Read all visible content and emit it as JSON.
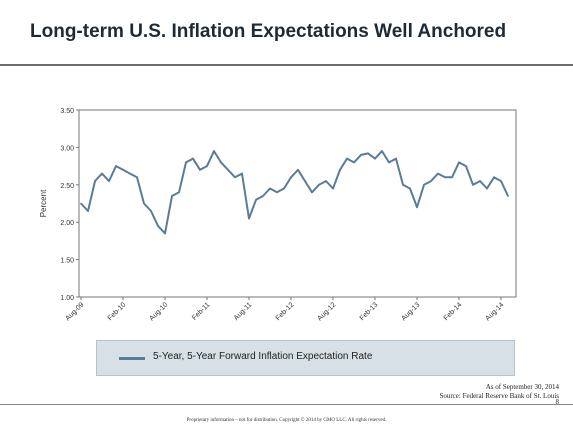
{
  "slide": {
    "title": "Long-term U.S. Inflation Expectations Well Anchored",
    "as_of": "As of September 30, 2014",
    "source": "Source: Federal Reserve Bank of St. Louis",
    "page_number": "8",
    "footer": "Proprietary information – not for distribution. Copyright © 2014 by GMO LLC. All rights reserved."
  },
  "colors": {
    "series": "#5a7d95",
    "legend_bg": "#d6e0e6"
  },
  "chart_data": {
    "type": "line",
    "title": "",
    "xlabel": "",
    "ylabel": "Percent",
    "ylim": [
      1.0,
      3.5
    ],
    "yticks": [
      "1.00",
      "1.50",
      "2.00",
      "2.50",
      "3.00",
      "3.50"
    ],
    "xticks": [
      "Aug-09",
      "Feb-10",
      "Aug-10",
      "Feb-11",
      "Aug-11",
      "Feb-12",
      "Aug-12",
      "Feb-13",
      "Aug-13",
      "Feb-14",
      "Aug-14"
    ],
    "grid": false,
    "legend_position": "bottom",
    "series": [
      {
        "name": "5-Year, 5-Year Forward Inflation Expectation Rate",
        "x": [
          "2009-08",
          "2009-09",
          "2009-10",
          "2009-11",
          "2009-12",
          "2010-01",
          "2010-02",
          "2010-03",
          "2010-04",
          "2010-05",
          "2010-06",
          "2010-07",
          "2010-08",
          "2010-09",
          "2010-10",
          "2010-11",
          "2010-12",
          "2011-01",
          "2011-02",
          "2011-03",
          "2011-04",
          "2011-05",
          "2011-06",
          "2011-07",
          "2011-08",
          "2011-09",
          "2011-10",
          "2011-11",
          "2011-12",
          "2012-01",
          "2012-02",
          "2012-03",
          "2012-04",
          "2012-05",
          "2012-06",
          "2012-07",
          "2012-08",
          "2012-09",
          "2012-10",
          "2012-11",
          "2012-12",
          "2013-01",
          "2013-02",
          "2013-03",
          "2013-04",
          "2013-05",
          "2013-06",
          "2013-07",
          "2013-08",
          "2013-09",
          "2013-10",
          "2013-11",
          "2013-12",
          "2014-01",
          "2014-02",
          "2014-03",
          "2014-04",
          "2014-05",
          "2014-06",
          "2014-07",
          "2014-08",
          "2014-09"
        ],
        "values": [
          2.25,
          2.15,
          2.55,
          2.65,
          2.55,
          2.75,
          2.7,
          2.65,
          2.6,
          2.25,
          2.15,
          1.95,
          1.85,
          2.35,
          2.4,
          2.8,
          2.85,
          2.7,
          2.75,
          2.95,
          2.8,
          2.7,
          2.6,
          2.65,
          2.05,
          2.3,
          2.35,
          2.45,
          2.4,
          2.45,
          2.6,
          2.7,
          2.55,
          2.4,
          2.5,
          2.55,
          2.45,
          2.7,
          2.85,
          2.8,
          2.9,
          2.92,
          2.85,
          2.95,
          2.8,
          2.85,
          2.5,
          2.45,
          2.2,
          2.5,
          2.55,
          2.65,
          2.6,
          2.6,
          2.8,
          2.75,
          2.5,
          2.55,
          2.45,
          2.6,
          2.55,
          2.35
        ]
      }
    ]
  }
}
